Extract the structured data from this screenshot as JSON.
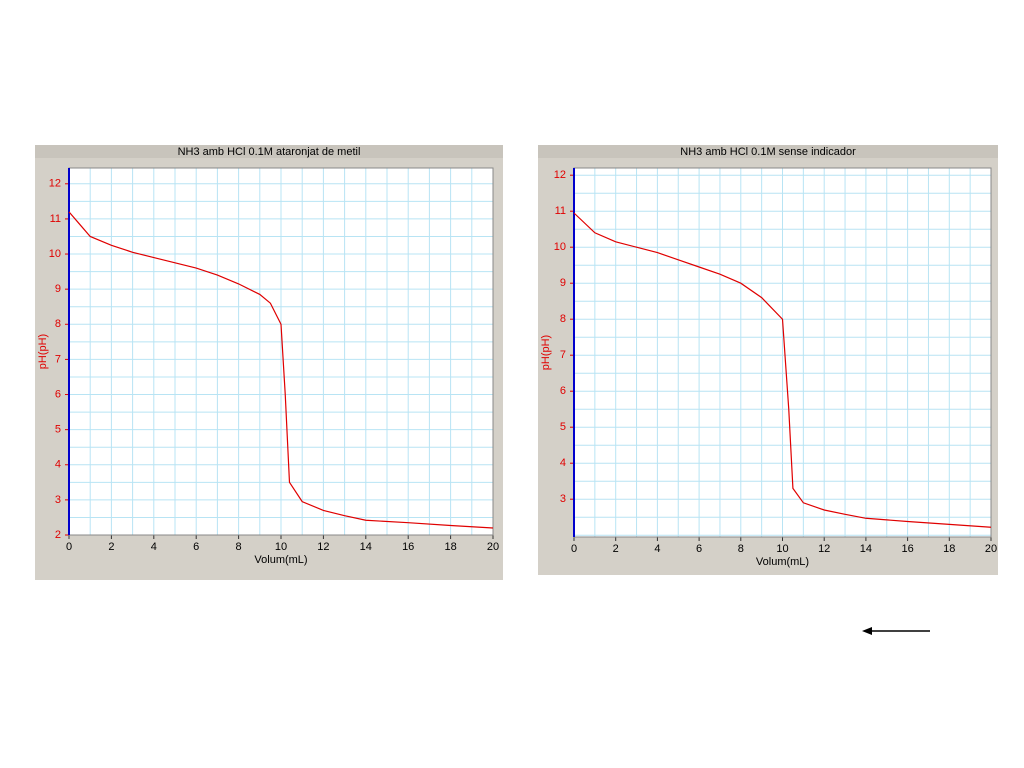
{
  "chart_data": [
    {
      "type": "line",
      "title": "NH3 amb HCl 0.1M ataronjat de metil",
      "x_label": "Volum(mL)",
      "y_label": "pH(pH)",
      "series": [
        {
          "name": "pH",
          "color": "#e00000",
          "x": [
            0,
            0.5,
            1,
            2,
            3,
            4,
            5,
            6,
            7,
            8,
            9,
            9.5,
            10,
            10.2,
            10.4,
            11,
            12,
            13,
            14,
            16,
            18,
            20
          ],
          "values": [
            11.2,
            10.85,
            10.5,
            10.25,
            10.05,
            9.9,
            9.75,
            9.6,
            9.4,
            9.15,
            8.85,
            8.6,
            8.0,
            6.0,
            3.5,
            2.95,
            2.7,
            2.55,
            2.42,
            2.35,
            2.27,
            2.2
          ]
        }
      ],
      "xlim": [
        0,
        20
      ],
      "ylim": [
        2,
        12.45
      ],
      "xticks": [
        0,
        2,
        4,
        6,
        8,
        10,
        12,
        14,
        16,
        18,
        20
      ],
      "yticks": [
        2,
        3,
        4,
        5,
        6,
        7,
        8,
        9,
        10,
        11,
        12
      ],
      "x_minor_ticks": [
        1,
        3,
        5,
        7,
        9,
        11,
        13,
        15,
        17,
        19
      ],
      "y_minor_ticks": [
        2.5,
        3.5,
        4.5,
        5.5,
        6.5,
        7.5,
        8.5,
        9.5,
        10.5,
        11.5,
        12.5
      ],
      "grid": true
    },
    {
      "type": "line",
      "title": "NH3 amb HCl 0.1M sense indicador",
      "x_label": "Volum(mL)",
      "y_label": "pH(pH)",
      "series": [
        {
          "name": "pH",
          "color": "#e00000",
          "x": [
            0,
            1,
            2,
            3,
            4,
            5,
            6,
            7,
            8,
            9,
            10,
            10.3,
            10.5,
            11,
            12,
            13,
            14,
            16,
            18,
            20
          ],
          "values": [
            10.95,
            10.4,
            10.15,
            10.0,
            9.85,
            9.65,
            9.45,
            9.25,
            9.0,
            8.6,
            8.0,
            5.5,
            3.3,
            2.9,
            2.7,
            2.58,
            2.47,
            2.38,
            2.3,
            2.22
          ]
        }
      ],
      "xlim": [
        0,
        20
      ],
      "ylim": [
        1.95,
        12.2
      ],
      "xticks": [
        0,
        2,
        4,
        6,
        8,
        10,
        12,
        14,
        16,
        18,
        20
      ],
      "yticks": [
        3,
        4,
        5,
        6,
        7,
        8,
        9,
        10,
        11,
        12
      ],
      "x_minor_ticks": [
        1,
        3,
        5,
        7,
        9,
        11,
        13,
        15,
        17,
        19
      ],
      "y_minor_ticks": [
        2,
        2.5,
        3.5,
        4.5,
        5.5,
        6.5,
        7.5,
        8.5,
        9.5,
        10.5,
        11.5
      ],
      "grid": true
    }
  ]
}
